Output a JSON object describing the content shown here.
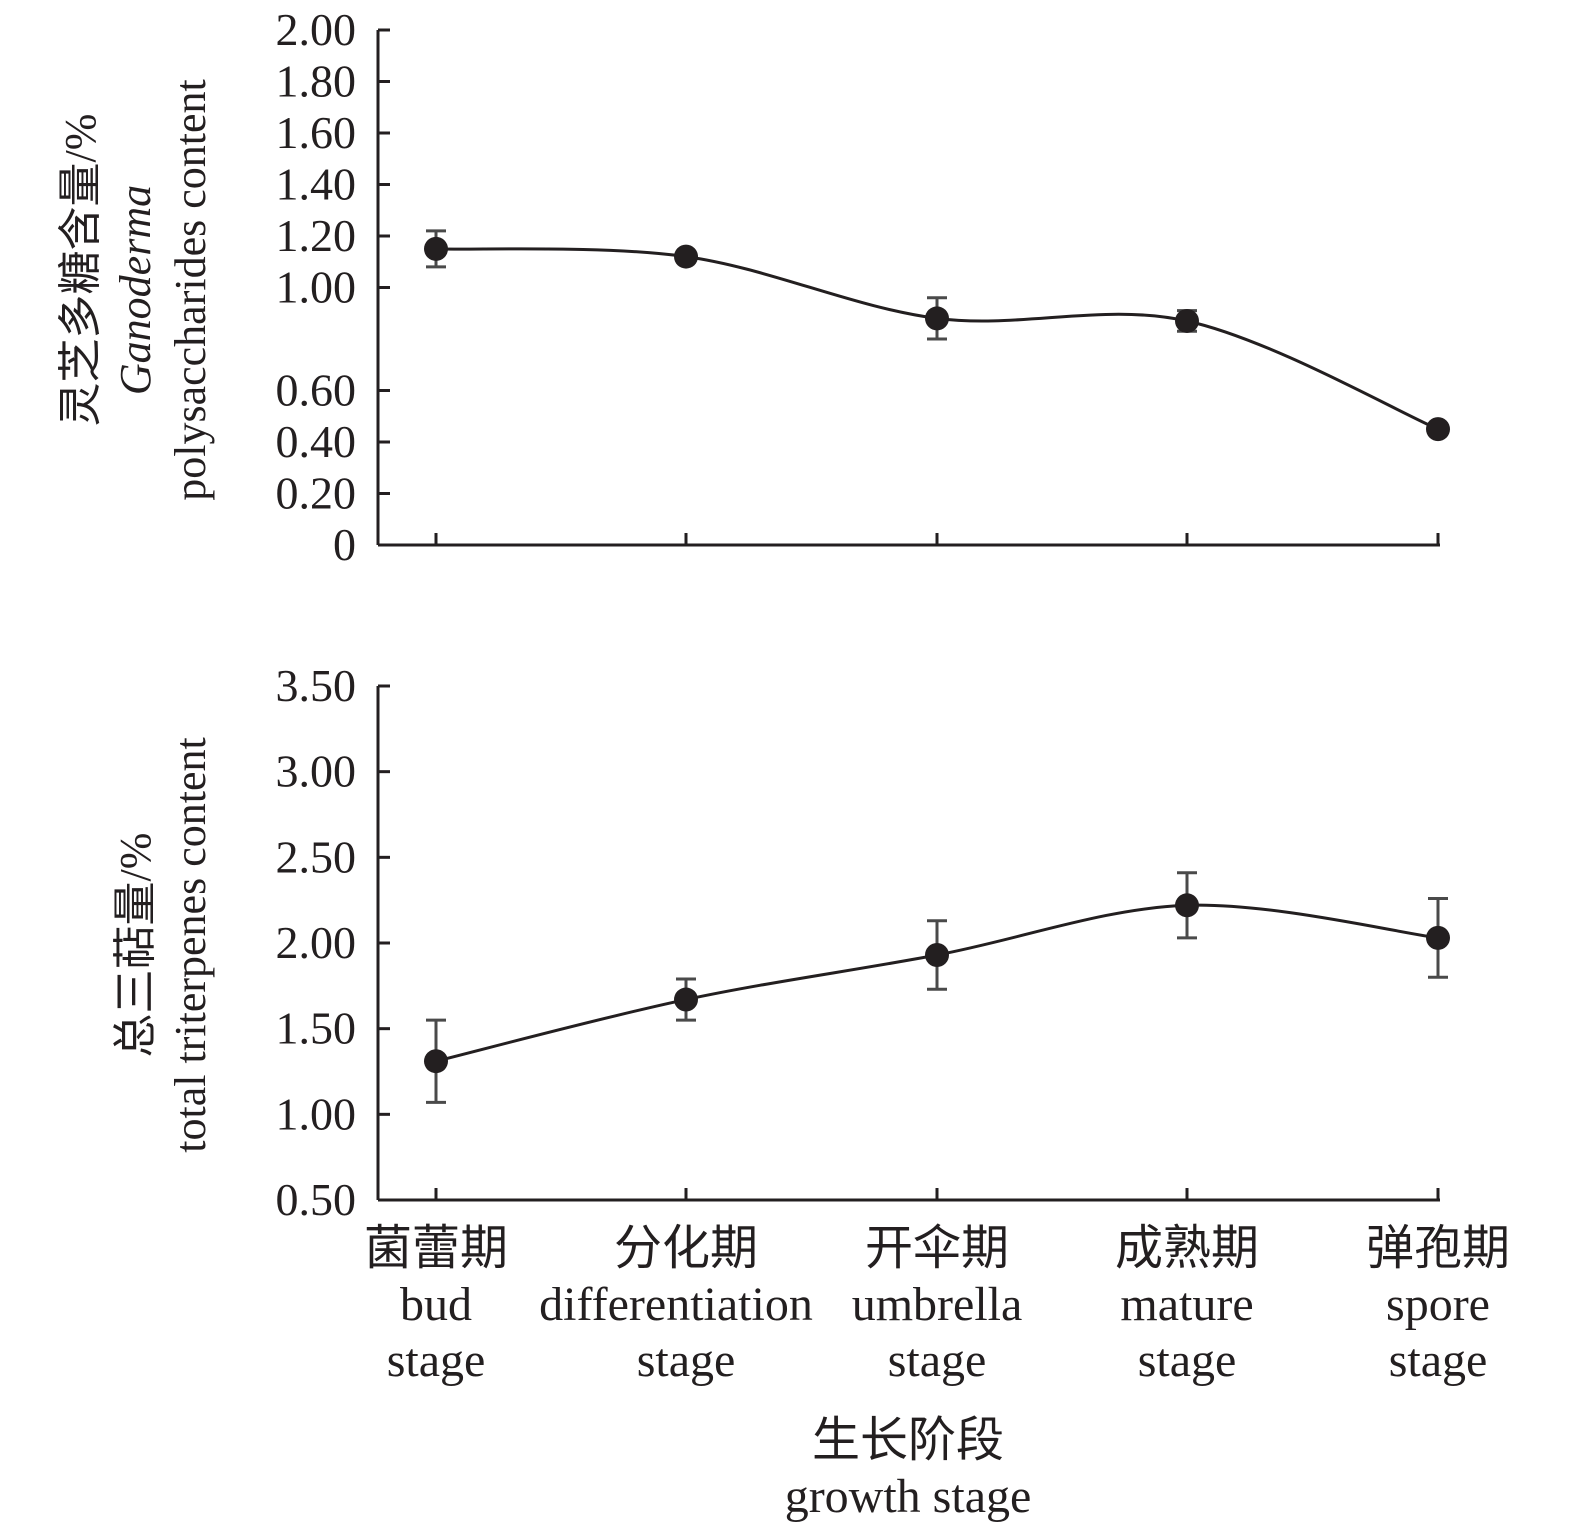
{
  "chart_data": [
    {
      "type": "line",
      "title": "",
      "ylabel_cn": "灵芝多糖含量/%",
      "ylabel_en_italic": "Ganoderma",
      "ylabel_en": "polysaccharides content",
      "ylim": [
        0,
        2.0
      ],
      "y_ticks": [
        "0",
        "0.20",
        "0.40",
        "0.60",
        "1.00",
        "1.20",
        "1.40",
        "1.60",
        "1.80",
        "2.00"
      ],
      "y_tick_values": [
        0,
        0.2,
        0.4,
        0.6,
        1.0,
        1.2,
        1.4,
        1.6,
        1.8,
        2.0
      ],
      "categories": [
        "bud stage",
        "differentiation stage",
        "umbrella stage",
        "mature stage",
        "spore stage"
      ],
      "series": [
        {
          "name": "Ganoderma polysaccharides content",
          "values": [
            1.15,
            1.12,
            0.88,
            0.87,
            0.45
          ],
          "errors": [
            0.07,
            0.02,
            0.08,
            0.04,
            0.02
          ]
        }
      ]
    },
    {
      "type": "line",
      "title": "",
      "ylabel_cn": "总三萜量/%",
      "ylabel_en": "total triterpenes content",
      "ylim": [
        0.5,
        3.5
      ],
      "y_ticks": [
        "0.50",
        "1.00",
        "1.50",
        "2.00",
        "2.50",
        "3.00",
        "3.50"
      ],
      "y_tick_values": [
        0.5,
        1.0,
        1.5,
        2.0,
        2.5,
        3.0,
        3.5
      ],
      "categories": [
        "bud stage",
        "differentiation stage",
        "umbrella stage",
        "mature stage",
        "spore stage"
      ],
      "series": [
        {
          "name": "total triterpenes content",
          "values": [
            1.31,
            1.67,
            1.93,
            2.22,
            2.03
          ],
          "errors": [
            0.24,
            0.12,
            0.2,
            0.19,
            0.23
          ]
        }
      ]
    }
  ],
  "x_categories": [
    {
      "cn": "菌蕾期",
      "en1": "bud",
      "en2": "stage"
    },
    {
      "cn": "分化期",
      "en1": "differentiation",
      "en2": "stage"
    },
    {
      "cn": "开伞期",
      "en1": "umbrella",
      "en2": "stage"
    },
    {
      "cn": "成熟期",
      "en1": "mature",
      "en2": "stage"
    },
    {
      "cn": "弹孢期",
      "en1": "spore",
      "en2": "stage"
    }
  ],
  "xlabel_cn": "生长阶段",
  "xlabel_en": "growth stage"
}
